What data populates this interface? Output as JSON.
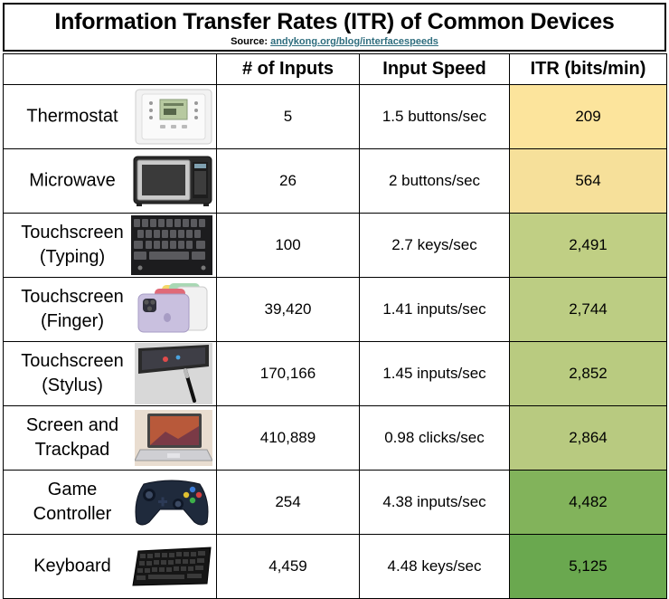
{
  "title": "Information Transfer Rates (ITR) of Common Devices",
  "source_label": "Source:",
  "source_link": "andykong.org/blog/interfacespeeds",
  "headers": [
    "",
    "# of Inputs",
    "Input Speed",
    "ITR (bits/min)"
  ],
  "rows": [
    {
      "device": "Thermostat",
      "inputs": "5",
      "speed": "1.5 buttons/sec",
      "itr": "209",
      "itr_color": "#fce49c",
      "icon": "thermostat-icon"
    },
    {
      "device": "Microwave",
      "inputs": "26",
      "speed": "2 buttons/sec",
      "itr": "564",
      "itr_color": "#f6e09a",
      "icon": "microwave-icon"
    },
    {
      "device": "Touchscreen (Typing)",
      "inputs": "100",
      "speed": "2.7 keys/sec",
      "itr": "2,491",
      "itr_color": "#c0cf84",
      "icon": "phone-keyboard-icon"
    },
    {
      "device": "Touchscreen (Finger)",
      "inputs": "39,420",
      "speed": "1.41 inputs/sec",
      "itr": "2,744",
      "itr_color": "#bccd83",
      "icon": "smartphones-icon"
    },
    {
      "device": "Touchscreen (Stylus)",
      "inputs": "170,166",
      "speed": "1.45 inputs/sec",
      "itr": "2,852",
      "itr_color": "#b9cb80",
      "icon": "tablet-stylus-icon"
    },
    {
      "device": "Screen and Trackpad",
      "inputs": "410,889",
      "speed": "0.98 clicks/sec",
      "itr": "2,864",
      "itr_color": "#b8ca80",
      "icon": "laptop-icon"
    },
    {
      "device": "Game Controller",
      "inputs": "254",
      "speed": "4.38 inputs/sec",
      "itr": "4,482",
      "itr_color": "#82b35b",
      "icon": "gamepad-icon"
    },
    {
      "device": "Keyboard",
      "inputs": "4,459",
      "speed": "4.48 keys/sec",
      "itr": "5,125",
      "itr_color": "#6aa84f",
      "icon": "keyboard-icon"
    }
  ]
}
